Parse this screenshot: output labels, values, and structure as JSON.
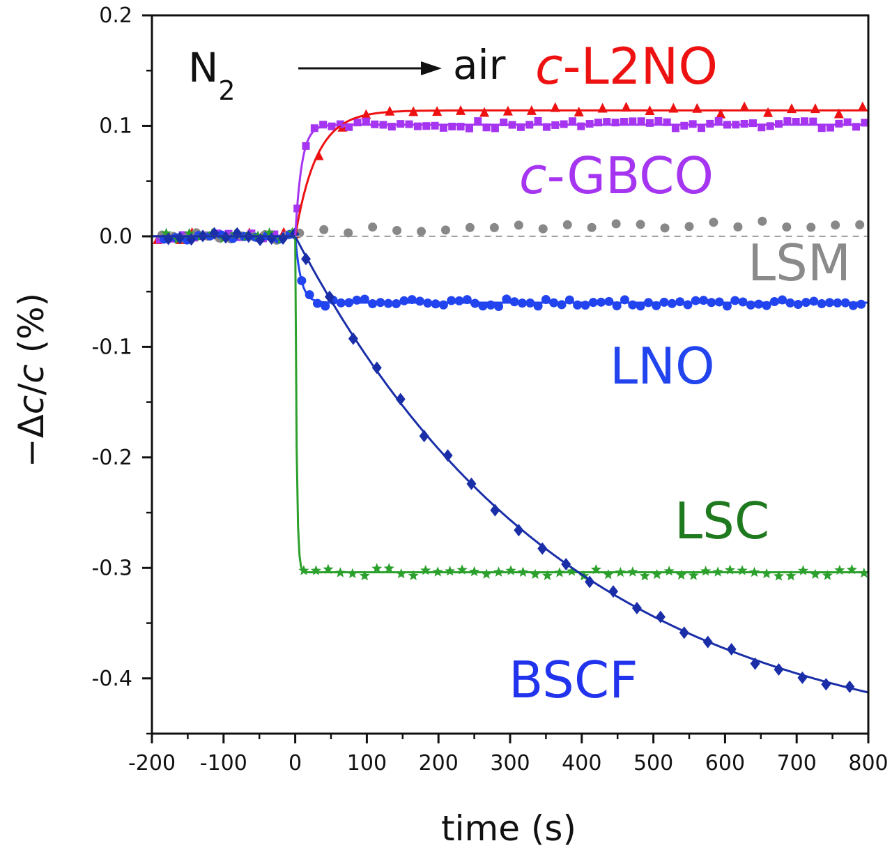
{
  "chart_data": {
    "type": "scatter",
    "xlabel": "time (s)",
    "ylabel": {
      "prefix": "−Δ",
      "var1": "c",
      "slash": "/",
      "var2": "c",
      "unit": " (%)"
    },
    "xlim": [
      -200,
      800
    ],
    "ylim": [
      -0.45,
      0.2
    ],
    "x_ticks": [
      "-200",
      "-100",
      "0",
      "100",
      "200",
      "300",
      "400",
      "500",
      "600",
      "700",
      "800"
    ],
    "y_ticks": [
      "0.2",
      "0.1",
      "0.0",
      "-0.1",
      "-0.2",
      "-0.3",
      "-0.4"
    ],
    "reference_line": {
      "y": 0.0,
      "style": "dashed",
      "color": "#9a9a9a"
    },
    "annotations": {
      "start_gas_main": "N",
      "start_gas_sub": "2",
      "end_gas": "air"
    },
    "series": [
      {
        "name": "c-L2NO",
        "label_italic": "c",
        "label_rest": "-L2NO",
        "color": "#ee1111",
        "marker": "triangle",
        "step_time": 0,
        "plateau": 0.114,
        "time_constant": 30
      },
      {
        "name": "c-GBCO",
        "label_italic": "c",
        "label_rest": "-GBCO",
        "color": "#a535f0",
        "marker": "square",
        "step_time": 0,
        "plateau": 0.101,
        "time_constant": 9
      },
      {
        "name": "LSM",
        "label_italic": "",
        "label_rest": "LSM",
        "color": "#888888",
        "marker": "circle",
        "step_time": 0,
        "plateau": 0.011,
        "time_constant": 150
      },
      {
        "name": "LNO",
        "label_italic": "",
        "label_rest": "LNO",
        "color": "#2244ee",
        "marker": "circle",
        "step_time": 0,
        "plateau": -0.06,
        "time_constant": 8
      },
      {
        "name": "LSC",
        "label_italic": "",
        "label_rest": "LSC",
        "color": "#2ca02c",
        "marker": "star",
        "step_time": 0,
        "plateau": -0.304,
        "time_constant": 2
      },
      {
        "name": "BSCF",
        "label_italic": "",
        "label_rest": "BSCF",
        "color": "#1a2ea8",
        "marker": "diamond",
        "step_time": 0,
        "plateau": -0.47,
        "time_constant": 380
      }
    ],
    "series_label_colors": {
      "c-L2NO": "#ee1111",
      "c-GBCO": "#a535f0",
      "LSM": "#8a8a8a",
      "LNO": "#2244ee",
      "LSC": "#1f7a1f",
      "BSCF": "#2233ee"
    }
  }
}
